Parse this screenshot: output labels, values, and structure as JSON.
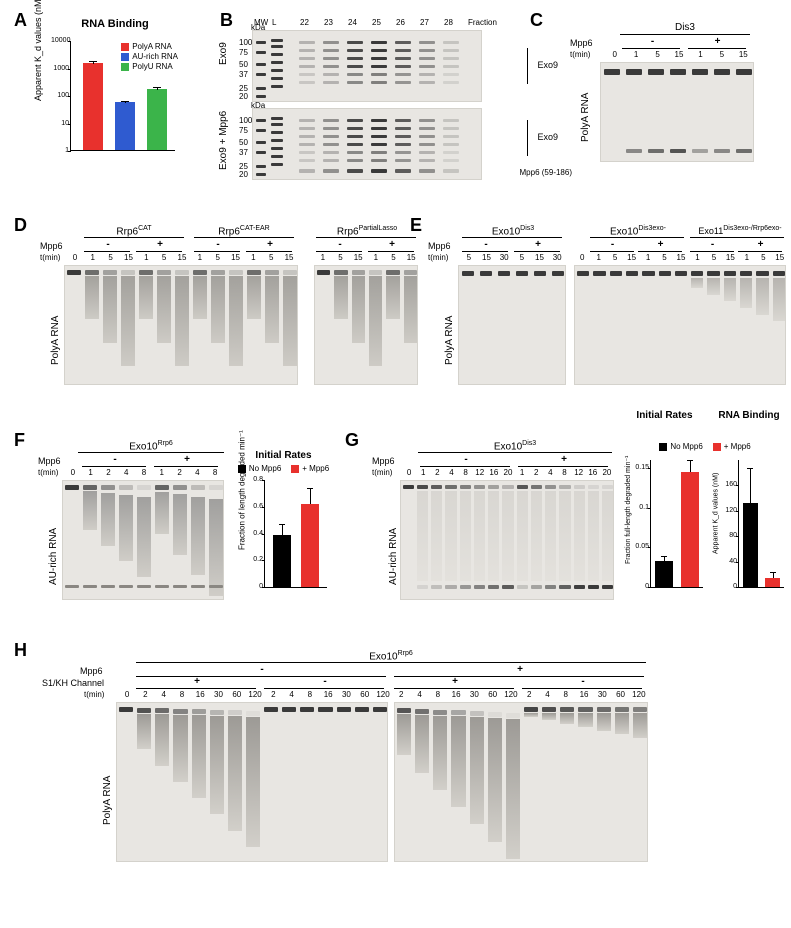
{
  "labels": {
    "A": "A",
    "B": "B",
    "C": "C",
    "D": "D",
    "E": "E",
    "F": "F",
    "G": "G",
    "H": "H"
  },
  "A": {
    "title": "RNA Binding",
    "ylab": "Apparent K_d values (nM)",
    "legend": [
      {
        "label": "PolyA RNA",
        "color": "#e8312d"
      },
      {
        "label": "AU-rich RNA",
        "color": "#2f5bd0"
      },
      {
        "label": "PolyU RNA",
        "color": "#3bb44a"
      }
    ],
    "ylim": [
      1,
      10000
    ],
    "ticks": [
      1,
      10,
      100,
      1000,
      10000
    ],
    "bars": [
      {
        "label": "PolyA RNA",
        "value": 1500,
        "err": 300,
        "color": "#e8312d"
      },
      {
        "label": "AU-rich RNA",
        "value": 55,
        "err": 10,
        "color": "#2f5bd0"
      },
      {
        "label": "PolyU RNA",
        "value": 170,
        "err": 40,
        "color": "#3bb44a"
      }
    ]
  },
  "B": {
    "top_title": "Exo9",
    "bot_title": "Exo9 + Mpp6",
    "lane_header": [
      "MW",
      "L",
      "22",
      "23",
      "24",
      "25",
      "26",
      "27",
      "28",
      "Fraction"
    ],
    "mws": [
      "kDa",
      "100",
      "75",
      "50",
      "37",
      "25",
      "20"
    ],
    "right_labels": {
      "top": "Exo9",
      "bot1": "Exo9",
      "bot2": "Mpp6 (59-186)"
    }
  },
  "C": {
    "title": "Dis3",
    "mpp6": "Mpp6",
    "minus": "-",
    "plus": "+",
    "t": "t(min)",
    "times": [
      "0",
      "1",
      "5",
      "15",
      "1",
      "5",
      "15"
    ],
    "ylab": "PolyA RNA"
  },
  "D": {
    "h1": "Rrp6",
    "h1sup": "CAT",
    "h2": "Rrp6",
    "h2sup": "CAT-EAR",
    "h3": "Rrp6",
    "h3sup": "PartialLasso",
    "mpp6": "Mpp6",
    "minus": "-",
    "plus": "+",
    "t": "t(min)",
    "times_left": [
      "0",
      "1",
      "5",
      "15",
      "1",
      "5",
      "15",
      "1",
      "5",
      "15",
      "1",
      "5",
      "15"
    ],
    "times_right": [
      "1",
      "5",
      "15",
      "1",
      "5",
      "15"
    ],
    "ylab": "PolyA RNA"
  },
  "E": {
    "h1": "Exo10",
    "h1sup": "Dis3",
    "h2": "Exo10",
    "h2sup": "Dis3exo-",
    "h3": "Exo11",
    "h3sup": "Dis3exo-/Rrp6exo-",
    "mpp6": "Mpp6",
    "minus": "-",
    "plus": "+",
    "t": "t(min)",
    "times_left": [
      "5",
      "15",
      "30",
      "5",
      "15",
      "30"
    ],
    "times_right": [
      "0",
      "1",
      "5",
      "15",
      "1",
      "5",
      "15",
      "1",
      "5",
      "15",
      "1",
      "5",
      "15"
    ],
    "ylab": "PolyA RNA"
  },
  "F": {
    "title": "Exo10",
    "titlesup": "Rrp6",
    "mpp6": "Mpp6",
    "minus": "-",
    "plus": "+",
    "t": "t(min)",
    "times": [
      "0",
      "1",
      "2",
      "4",
      "8",
      "1",
      "2",
      "4",
      "8"
    ],
    "ylab": "AU-rich RNA",
    "chart": {
      "title": "Initial Rates",
      "ylab": "Fraction of length degraded  min⁻¹",
      "ylim": [
        0,
        0.8
      ],
      "ticks": [
        0,
        0.2,
        0.4,
        0.6,
        0.8
      ],
      "bars": [
        {
          "label": "No Mpp6",
          "value": 0.39,
          "err": 0.08,
          "color": "#000000"
        },
        {
          "label": "+ Mpp6",
          "value": 0.62,
          "err": 0.12,
          "color": "#e8312d"
        }
      ]
    }
  },
  "G": {
    "title": "Exo10",
    "titlesup": "Dis3",
    "mpp6": "Mpp6",
    "minus": "-",
    "plus": "+",
    "t": "t(min)",
    "times": [
      "0",
      "1",
      "2",
      "4",
      "8",
      "12",
      "16",
      "20",
      "1",
      "2",
      "4",
      "8",
      "12",
      "16",
      "20"
    ],
    "ylab": "AU-rich RNA",
    "chart1": {
      "title": "Initial Rates",
      "ylab": "Fraction full-length degraded  min⁻¹",
      "ylim": [
        0,
        0.16
      ],
      "ticks": [
        0,
        0.05,
        0.1,
        0.15
      ],
      "bars": [
        {
          "label": "No Mpp6",
          "value": 0.033,
          "err": 0.006,
          "color": "#000000"
        },
        {
          "label": "+ Mpp6",
          "value": 0.145,
          "err": 0.015,
          "color": "#e8312d"
        }
      ]
    },
    "chart2": {
      "title": "RNA Binding",
      "ylab": "Apparent K_d values (nM)",
      "ylim": [
        0,
        200
      ],
      "ticks": [
        0,
        40,
        80,
        120,
        160
      ],
      "bars": [
        {
          "label": "No Mpp6",
          "value": 132,
          "err": 55,
          "color": "#000000"
        },
        {
          "label": "+ Mpp6",
          "value": 14,
          "err": 10,
          "color": "#e8312d"
        }
      ]
    },
    "legend": [
      {
        "label": "No Mpp6",
        "color": "#000000"
      },
      {
        "label": "+ Mpp6",
        "color": "#e8312d"
      }
    ]
  },
  "H": {
    "title": "Exo10",
    "titlesup": "Rrp6",
    "mpp6": "Mpp6",
    "s1kh": "S1/KH Channel",
    "minus": "-",
    "plus": "+",
    "t": "t(min)",
    "times": [
      "0",
      "2",
      "4",
      "8",
      "16",
      "30",
      "60",
      "120",
      "2",
      "4",
      "8",
      "16",
      "30",
      "60",
      "120",
      "2",
      "4",
      "8",
      "16",
      "30",
      "60",
      "120",
      "2",
      "4",
      "8",
      "16",
      "30",
      "60",
      "120"
    ],
    "ylab": "PolyA RNA"
  },
  "common": {
    "gel_bg": "#e8e6e2",
    "band": "#3a3a3a"
  }
}
